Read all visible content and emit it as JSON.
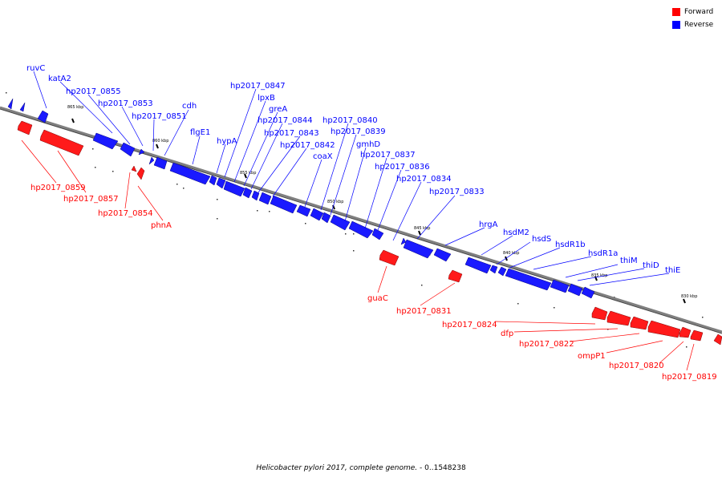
{
  "legend": {
    "forward": {
      "label": "Forward",
      "color": "#ff0000"
    },
    "reverse": {
      "label": "Reverse",
      "color": "#0000ff"
    }
  },
  "caption": {
    "organism": "Helicobacter pylori 2017, complete genome.",
    "range": "- 0..1548238"
  },
  "scale_labels": [
    "865 kbp",
    "860 kbp",
    "855 kbp",
    "850 kbp",
    "845 kbp",
    "840 kbp",
    "835 kbp",
    "830 kbp"
  ],
  "reverse_genes": [
    "ruvC",
    "katA2",
    "hp2017_0855",
    "hp2017_0853",
    "hp2017_0851",
    "cdh",
    "flgE1",
    "hypA",
    "hp2017_0847",
    "lpxB",
    "greA",
    "hp2017_0844",
    "hp2017_0843",
    "hp2017_0842",
    "coaX",
    "hp2017_0840",
    "hp2017_0839",
    "gmhD",
    "hp2017_0837",
    "hp2017_0836",
    "hp2017_0834",
    "hp2017_0833",
    "hrgA",
    "hsdM2",
    "hsdS",
    "hsdR1b",
    "hsdR1a",
    "thiM",
    "thiD",
    "thiE"
  ],
  "forward_genes": [
    "hp2017_0859",
    "hp2017_0857",
    "hp2017_0854",
    "phnA",
    "guaC",
    "hp2017_0831",
    "hp2017_0824",
    "dfp",
    "hp2017_0822",
    "ompP1",
    "hp2017_0820",
    "hp2017_0819"
  ]
}
